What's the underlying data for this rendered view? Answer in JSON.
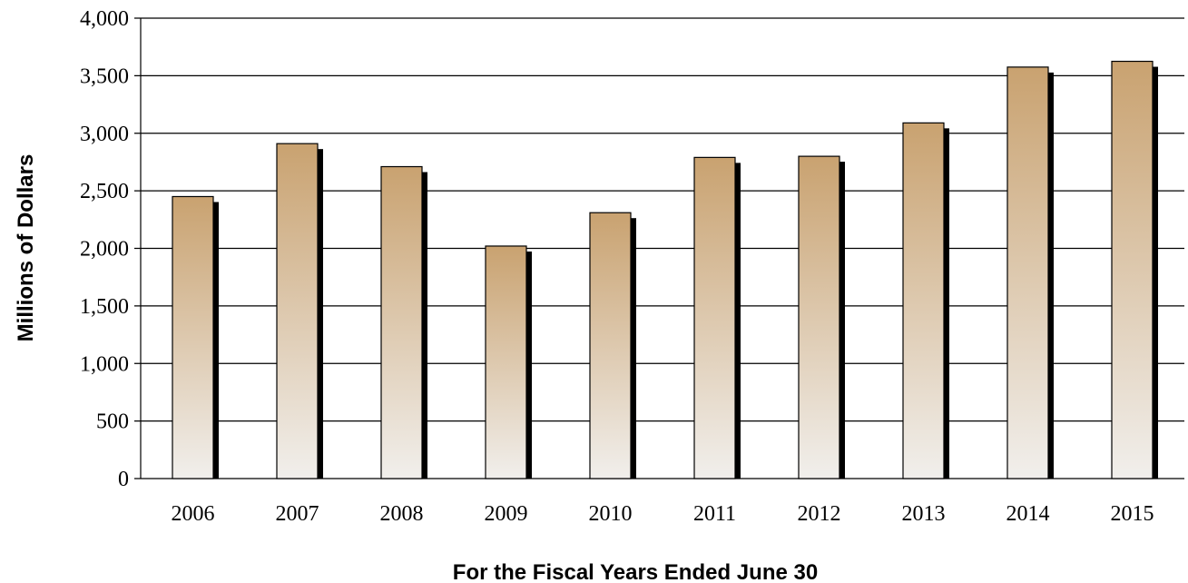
{
  "chart_data": {
    "type": "bar",
    "title": "",
    "xlabel": "For the Fiscal Years Ended June 30",
    "ylabel": "Millions of Dollars",
    "categories": [
      "2006",
      "2007",
      "2008",
      "2009",
      "2010",
      "2011",
      "2012",
      "2013",
      "2014",
      "2015"
    ],
    "values": [
      2450,
      2910,
      2710,
      2020,
      2310,
      2790,
      2800,
      3090,
      3575,
      3625
    ],
    "ylim": [
      0,
      4000
    ],
    "yticks": [
      0,
      500,
      1000,
      1500,
      2000,
      2500,
      3000,
      3500,
      4000
    ],
    "ytick_labels": [
      "0",
      "500",
      "1,000",
      "1,500",
      "2,000",
      "2,500",
      "3,000",
      "3,500",
      "4,000"
    ],
    "grid": true,
    "legend": "none",
    "colors": {
      "bar_top": "#c9a270",
      "bar_bottom": "#f1efec",
      "shadow": "#000000",
      "grid": "#000000"
    }
  }
}
